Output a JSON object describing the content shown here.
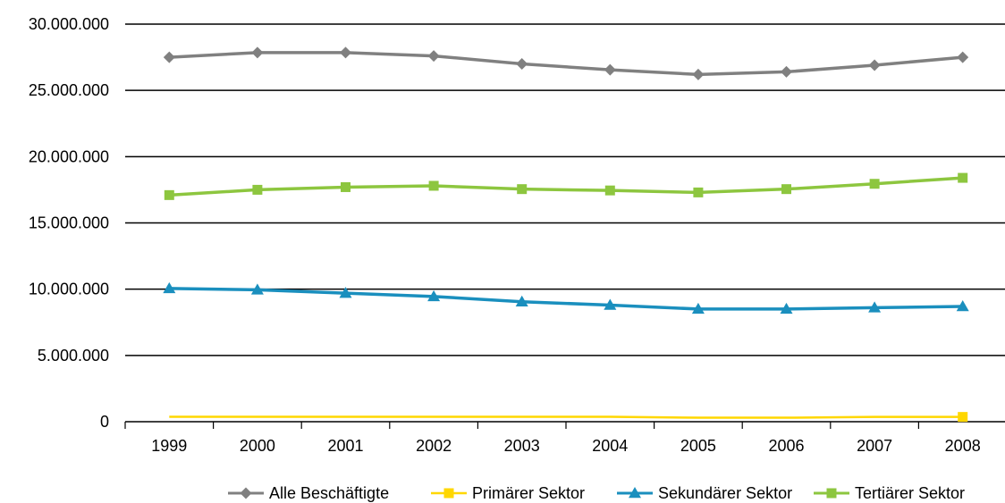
{
  "chart_data": {
    "type": "line",
    "title": "",
    "xlabel": "",
    "ylabel": "",
    "categories": [
      "1999",
      "2000",
      "2001",
      "2002",
      "2003",
      "2004",
      "2005",
      "2006",
      "2007",
      "2008"
    ],
    "ylim": [
      0,
      30000000
    ],
    "yticks": [
      0,
      5000000,
      10000000,
      15000000,
      20000000,
      25000000,
      30000000
    ],
    "ytick_labels": [
      "0",
      "5.000.000",
      "10.000.000",
      "15.000.000",
      "20.000.000",
      "25.000.000",
      "30.000.000"
    ],
    "grid": "horizontal",
    "legend_position": "bottom",
    "series": [
      {
        "name": "Alle Beschäftigte",
        "color": "#808080",
        "marker": "diamond",
        "values": [
          27500000,
          27850000,
          27850000,
          27600000,
          27000000,
          26550000,
          26200000,
          26400000,
          26900000,
          27500000
        ]
      },
      {
        "name": "Primärer Sektor",
        "color": "#FFD700",
        "marker": "square-last",
        "values": [
          370000,
          370000,
          370000,
          370000,
          370000,
          370000,
          300000,
          300000,
          360000,
          360000
        ]
      },
      {
        "name": "Sekundärer Sektor",
        "color": "#1A8FBE",
        "marker": "triangle",
        "values": [
          10050000,
          9950000,
          9700000,
          9450000,
          9050000,
          8800000,
          8500000,
          8500000,
          8600000,
          8700000
        ]
      },
      {
        "name": "Tertiärer Sektor",
        "color": "#8DC63F",
        "marker": "square",
        "values": [
          17100000,
          17500000,
          17700000,
          17800000,
          17550000,
          17450000,
          17300000,
          17550000,
          17950000,
          18400000
        ]
      }
    ]
  }
}
